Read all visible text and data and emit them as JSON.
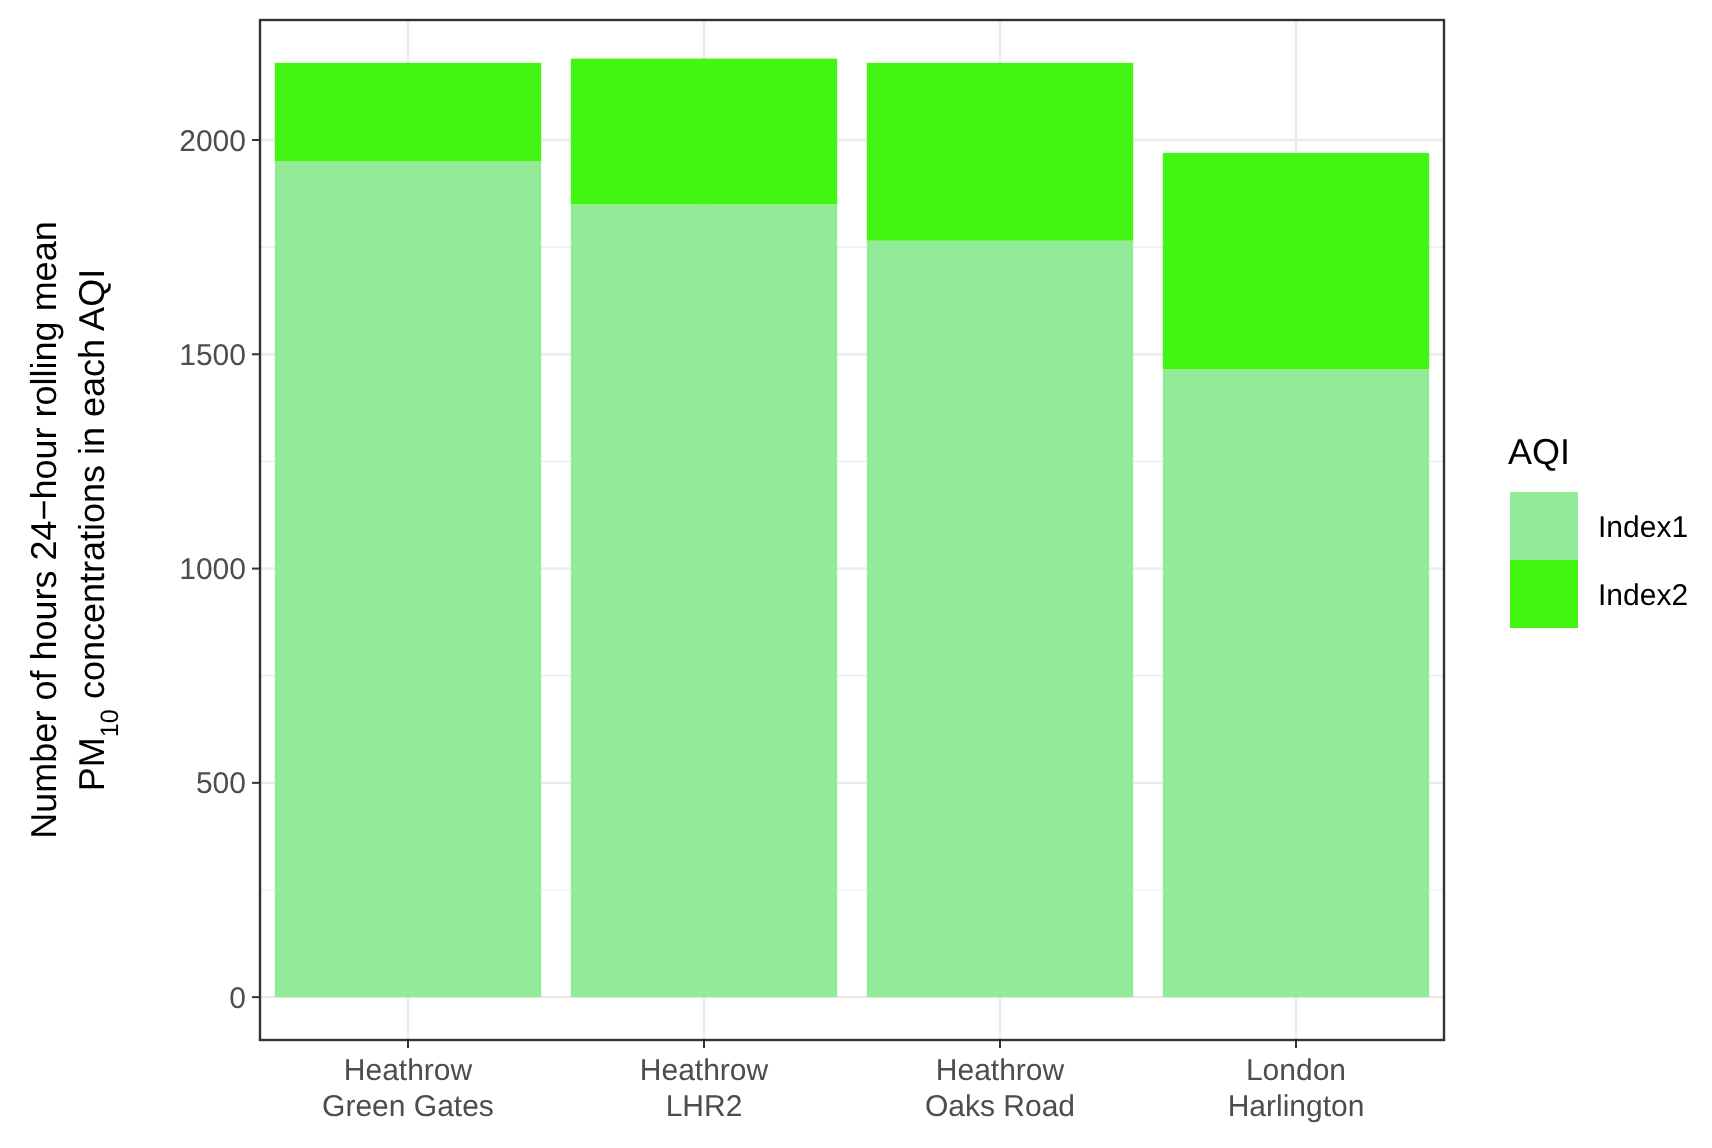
{
  "chart_data": {
    "type": "bar",
    "stacked": true,
    "categories": [
      "Heathrow\nGreen Gates",
      "Heathrow\nLHR2",
      "Heathrow\nOaks Road",
      "London\nHarlington"
    ],
    "series": [
      {
        "name": "Index1",
        "color": "#93eb97",
        "values": [
          1950,
          1850,
          1765,
          1465
        ]
      },
      {
        "name": "Index2",
        "color": "#44f514",
        "values": [
          230,
          340,
          415,
          505
        ]
      }
    ],
    "ylabel": "Number of hours 24−hour rolling mean\nPM$_{10}$ concentrations in each AQI",
    "legend_title": "AQI",
    "legend": "right",
    "ylim": [
      -100,
      2280
    ],
    "yticks": [
      0,
      500,
      1000,
      1500,
      2000
    ],
    "grid": true
  }
}
